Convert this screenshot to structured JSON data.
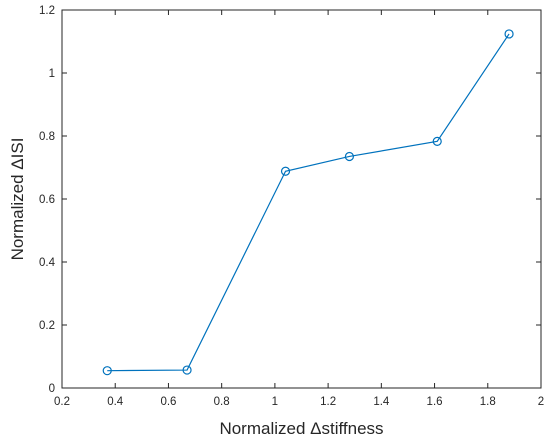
{
  "chart_data": {
    "type": "line",
    "title": "",
    "xlabel": "Normalized Δstiffness",
    "ylabel": "Normalized ΔISI",
    "xlim": [
      0.2,
      2
    ],
    "ylim": [
      0,
      1.2
    ],
    "x_ticks": [
      "0.2",
      "0.4",
      "0.6",
      "0.8",
      "1",
      "1.2",
      "1.4",
      "1.6",
      "1.8",
      "2"
    ],
    "y_ticks": [
      "0",
      "0.2",
      "0.4",
      "0.6",
      "0.8",
      "1",
      "1.2"
    ],
    "grid": false,
    "legend": "none",
    "series": [
      {
        "color": "#0072BD",
        "marker": "circle",
        "x": [
          0.37,
          0.67,
          1.04,
          1.28,
          1.61,
          1.88
        ],
        "y": [
          0.055,
          0.057,
          0.688,
          0.735,
          0.783,
          1.124
        ]
      }
    ]
  },
  "colors": {
    "axis": "#262626",
    "line": "#0072BD",
    "background": "#ffffff"
  }
}
